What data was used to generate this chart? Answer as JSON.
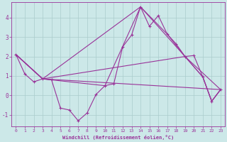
{
  "background_color": "#cce8e8",
  "grid_color": "#aacccc",
  "line_color": "#993399",
  "xlim": [
    -0.5,
    23.5
  ],
  "ylim": [
    -1.6,
    4.8
  ],
  "xticks": [
    0,
    1,
    2,
    3,
    4,
    5,
    6,
    7,
    8,
    9,
    10,
    11,
    12,
    13,
    14,
    15,
    16,
    17,
    18,
    19,
    20,
    21,
    22,
    23
  ],
  "yticks": [
    -1,
    0,
    1,
    2,
    3,
    4
  ],
  "xlabel": "Windchill (Refroidissement éolien,°C)",
  "main_line": {
    "x": [
      0,
      1,
      2,
      3,
      4,
      5,
      6,
      7,
      8,
      9,
      10,
      11,
      12,
      13,
      14,
      15,
      16,
      17,
      18,
      19,
      20,
      21,
      22,
      23
    ],
    "y": [
      2.1,
      1.1,
      0.7,
      0.85,
      0.8,
      -0.65,
      -0.75,
      -1.3,
      -0.9,
      0.05,
      0.5,
      0.6,
      2.5,
      3.1,
      4.55,
      3.55,
      4.1,
      3.15,
      2.65,
      2.0,
      2.05,
      0.95,
      -0.3,
      0.3
    ]
  },
  "fan_lines": [
    {
      "x": [
        0,
        3,
        10,
        14,
        17,
        19,
        21,
        22,
        23
      ],
      "y": [
        2.1,
        0.85,
        0.5,
        4.55,
        3.15,
        2.0,
        0.95,
        -0.3,
        0.3
      ]
    },
    {
      "x": [
        0,
        3,
        14,
        19,
        21,
        22,
        23
      ],
      "y": [
        2.1,
        0.85,
        4.55,
        2.0,
        0.95,
        -0.3,
        0.3
      ]
    },
    {
      "x": [
        0,
        3,
        19,
        23
      ],
      "y": [
        2.1,
        0.85,
        2.0,
        0.3
      ]
    },
    {
      "x": [
        0,
        3,
        23
      ],
      "y": [
        2.1,
        0.85,
        0.3
      ]
    }
  ]
}
